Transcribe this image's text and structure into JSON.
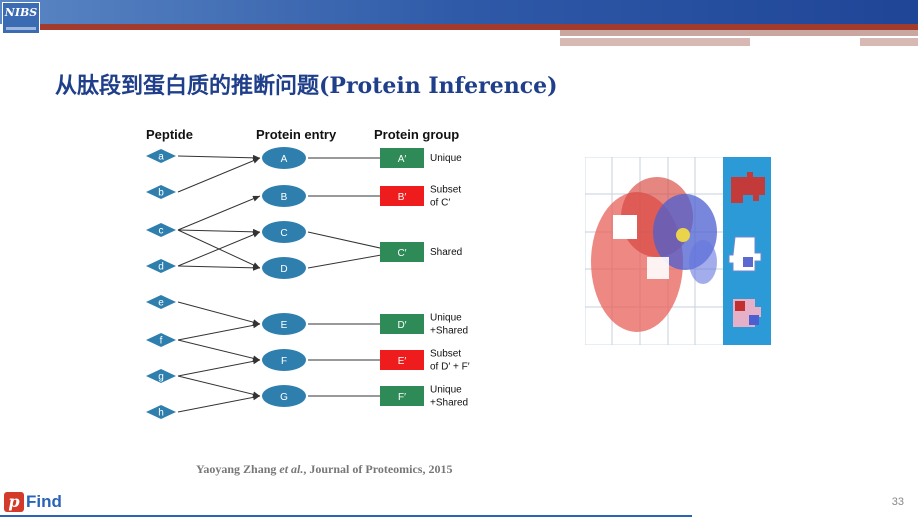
{
  "logo": {
    "text": "NIBS"
  },
  "title": "从肽段到蛋白质的推断问题(Protein Inference)",
  "diagram": {
    "headers": {
      "peptide": "Peptide",
      "protein": "Protein entry",
      "group": "Protein group"
    },
    "peptides": [
      "a",
      "b",
      "c",
      "d",
      "e",
      "f",
      "g",
      "h"
    ],
    "proteins": [
      "A",
      "B",
      "C",
      "D",
      "E",
      "F",
      "G"
    ],
    "groups": [
      {
        "label": "A′",
        "desc": [
          "Unique"
        ],
        "color": "#2e8b57"
      },
      {
        "label": "B′",
        "desc": [
          "Subset",
          "of C′"
        ],
        "color": "#ee1c1c"
      },
      {
        "label": "C′",
        "desc": [
          "Shared"
        ],
        "color": "#2e8b57"
      },
      {
        "label": "D′",
        "desc": [
          "Unique",
          "+Shared"
        ],
        "color": "#2e8b57"
      },
      {
        "label": "E′",
        "desc": [
          "Subset",
          "of D′ + F′"
        ],
        "color": "#ee1c1c"
      },
      {
        "label": "F′",
        "desc": [
          "Unique",
          "+Shared"
        ],
        "color": "#2e8b57"
      }
    ]
  },
  "citation": {
    "author": "Yaoyang Zhang ",
    "etal": "et al.",
    "rest": ", Journal of Proteomics, 2015"
  },
  "footer": {
    "brand_p": "p",
    "brand_find": "Find",
    "page": "33"
  },
  "colors": {
    "node": "#2f7fae",
    "title": "#1f3f8a"
  }
}
